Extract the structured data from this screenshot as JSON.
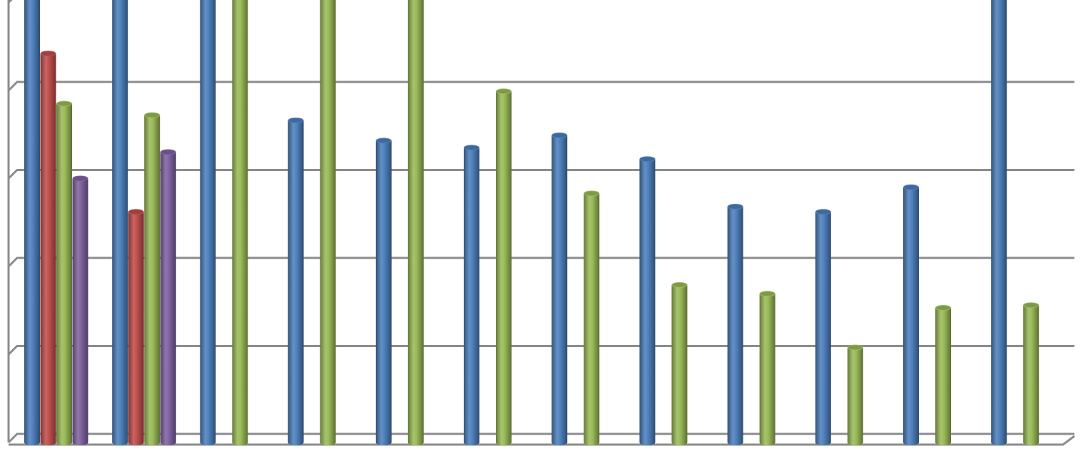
{
  "chart_data": {
    "type": "bar",
    "style": "3d-cylinder",
    "title": "",
    "xlabel": "",
    "ylabel": "",
    "grid": true,
    "legend": "none",
    "ylim": [
      0,
      5
    ],
    "categories": [
      "",
      "",
      "",
      "",
      "",
      "",
      "",
      "",
      "",
      "",
      "",
      ""
    ],
    "colors": {
      "blue": "#4f81bd",
      "red": "#c0504d",
      "green": "#9bbb59",
      "purple": "#8064a2",
      "grid": "#8c8c8c"
    },
    "groups": [
      {
        "values": [
          {
            "v": 5.2,
            "color": "blue"
          },
          {
            "v": 4.42,
            "color": "red"
          },
          {
            "v": 3.85,
            "color": "green"
          },
          {
            "v": 3.0,
            "color": "purple"
          }
        ]
      },
      {
        "values": [
          {
            "v": 5.2,
            "color": "blue"
          },
          {
            "v": 2.62,
            "color": "red"
          },
          {
            "v": 3.72,
            "color": "green"
          },
          {
            "v": 3.3,
            "color": "purple"
          }
        ]
      },
      {
        "values": [
          {
            "v": 5.2,
            "color": "blue"
          },
          {
            "v": 5.2,
            "color": "green"
          }
        ]
      },
      {
        "values": [
          {
            "v": 3.66,
            "color": "blue"
          },
          {
            "v": 5.2,
            "color": "green"
          }
        ]
      },
      {
        "values": [
          {
            "v": 3.43,
            "color": "blue"
          },
          {
            "v": 5.2,
            "color": "green"
          }
        ]
      },
      {
        "values": [
          {
            "v": 3.35,
            "color": "blue"
          },
          {
            "v": 3.99,
            "color": "green"
          }
        ]
      },
      {
        "values": [
          {
            "v": 3.49,
            "color": "blue"
          },
          {
            "v": 2.83,
            "color": "green"
          }
        ]
      },
      {
        "values": [
          {
            "v": 3.22,
            "color": "blue"
          },
          {
            "v": 1.79,
            "color": "green"
          }
        ]
      },
      {
        "values": [
          {
            "v": 2.68,
            "color": "blue"
          },
          {
            "v": 1.69,
            "color": "green"
          }
        ]
      },
      {
        "values": [
          {
            "v": 2.62,
            "color": "blue"
          },
          {
            "v": 1.08,
            "color": "green"
          }
        ]
      },
      {
        "values": [
          {
            "v": 2.9,
            "color": "blue"
          },
          {
            "v": 1.53,
            "color": "green"
          }
        ]
      },
      {
        "values": [
          {
            "v": 5.2,
            "color": "blue"
          },
          {
            "v": 1.56,
            "color": "green"
          }
        ]
      }
    ]
  }
}
